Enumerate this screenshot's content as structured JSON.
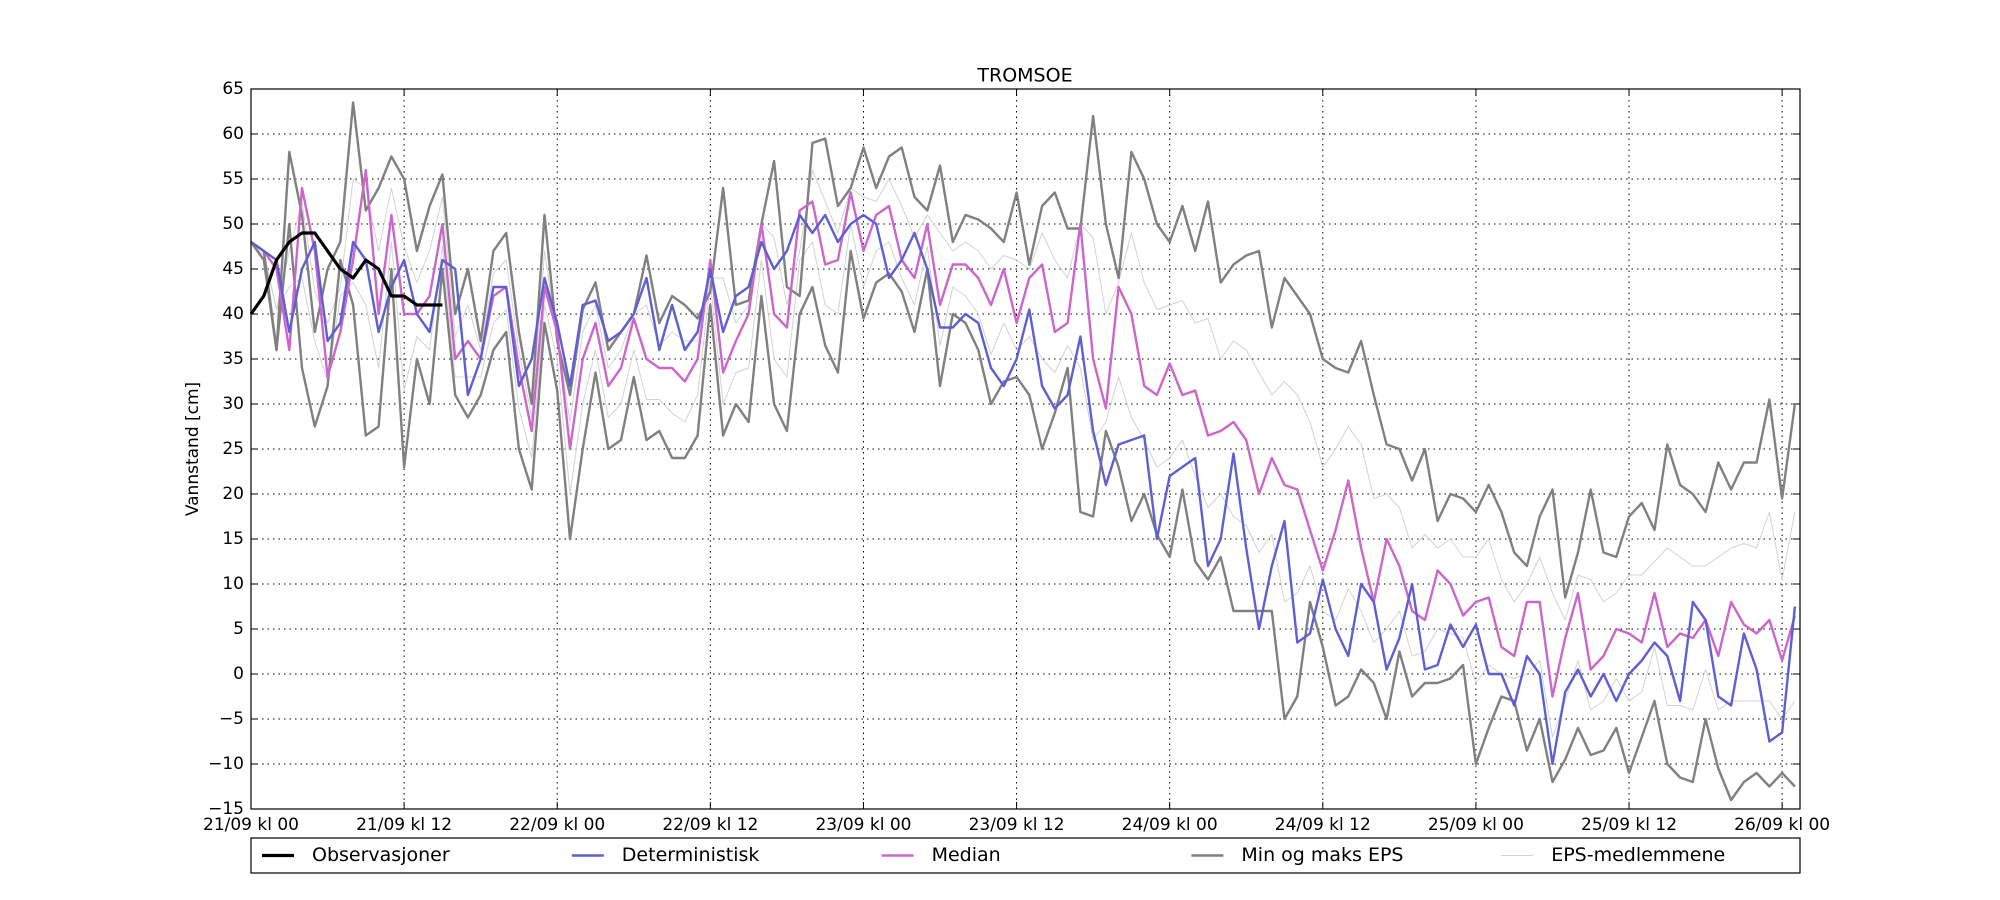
{
  "chart_data": {
    "type": "line",
    "title": "TROMSOE",
    "y_label": "Vannstand [cm]",
    "x": [
      0,
      1,
      2,
      3,
      4,
      5,
      6,
      7,
      8,
      9,
      10,
      11,
      12,
      13,
      14,
      15,
      16,
      17,
      18,
      19,
      20,
      21,
      22,
      23,
      24,
      25,
      26,
      27,
      28,
      29,
      30,
      31,
      32,
      33,
      34,
      35,
      36,
      37,
      38,
      39,
      40,
      41,
      42,
      43,
      44,
      45,
      46,
      47,
      48,
      49,
      50,
      51,
      52,
      53,
      54,
      55,
      56,
      57,
      58,
      59,
      60,
      61,
      62,
      63,
      64,
      65,
      66,
      67,
      68,
      69,
      70,
      71,
      72,
      73,
      74,
      75,
      76,
      77,
      78,
      79,
      80,
      81,
      82,
      83,
      84,
      85,
      86,
      87,
      88,
      89,
      90,
      91,
      92,
      93,
      94,
      95,
      96,
      97,
      98,
      99,
      100,
      101,
      102,
      103,
      104,
      105,
      106,
      107,
      108,
      109,
      110,
      111,
      112,
      113,
      114,
      115,
      116,
      117,
      118,
      119,
      120,
      121
    ],
    "xlim": [
      0,
      121.4
    ],
    "xticks": [
      {
        "value": 0,
        "label": "21/09 kl 00"
      },
      {
        "value": 12,
        "label": "21/09 kl 12"
      },
      {
        "value": 24,
        "label": "22/09 kl 00"
      },
      {
        "value": 36,
        "label": "22/09 kl 12"
      },
      {
        "value": 48,
        "label": "23/09 kl 00"
      },
      {
        "value": 60,
        "label": "23/09 kl 12"
      },
      {
        "value": 72,
        "label": "24/09 kl 00"
      },
      {
        "value": 84,
        "label": "24/09 kl 12"
      },
      {
        "value": 96,
        "label": "25/09 kl 00"
      },
      {
        "value": 108,
        "label": "25/09 kl 12"
      },
      {
        "value": 120,
        "label": "26/09 kl 00"
      }
    ],
    "ylim": [
      -15,
      65
    ],
    "yticks": [
      {
        "value": -15,
        "label": "−15"
      },
      {
        "value": -10,
        "label": "−10"
      },
      {
        "value": -5,
        "label": "−5"
      },
      0,
      5,
      10,
      15,
      20,
      25,
      30,
      35,
      40,
      45,
      50,
      55,
      60,
      65
    ],
    "grid": true,
    "legend": "bottom",
    "series": [
      {
        "name": "Observasjoner",
        "color": "#000000",
        "values": [
          40,
          42,
          46,
          48,
          49,
          49,
          47,
          45,
          44,
          46,
          45,
          42,
          42,
          41,
          41,
          41,
          null,
          null,
          null,
          null,
          null,
          null,
          null,
          null,
          null,
          null,
          null,
          null,
          null,
          null,
          null,
          null,
          null,
          null,
          null,
          null,
          null,
          null,
          null,
          null,
          null,
          null,
          null,
          null,
          null,
          null,
          null,
          null,
          null,
          null,
          null,
          null,
          null,
          null,
          null,
          null,
          null,
          null,
          null,
          null,
          null,
          null,
          null,
          null,
          null,
          null,
          null,
          null,
          null,
          null,
          null,
          null,
          null,
          null,
          null,
          null,
          null,
          null,
          null,
          null,
          null,
          null,
          null,
          null,
          null,
          null,
          null,
          null,
          null,
          null,
          null,
          null,
          null,
          null,
          null,
          null,
          null,
          null,
          null,
          null,
          null,
          null,
          null,
          null,
          null,
          null,
          null,
          null,
          null,
          null,
          null,
          null,
          null,
          null,
          null,
          null,
          null,
          null,
          null,
          null,
          null,
          null
        ]
      },
      {
        "name": "Deterministisk",
        "color": "#5f5fd2",
        "values": [
          48,
          47,
          46,
          38,
          45,
          48,
          37,
          39,
          48,
          46,
          38,
          43,
          46,
          40,
          38,
          46,
          45,
          31,
          35,
          43,
          43,
          32,
          35,
          44,
          39,
          32,
          41,
          41.5,
          37,
          38,
          40,
          44,
          36,
          41,
          36,
          38,
          45,
          38,
          42,
          43,
          48,
          45,
          47,
          51,
          49,
          51,
          48,
          50,
          51,
          50,
          44,
          46,
          49,
          45,
          38.5,
          38.5,
          40,
          39,
          34,
          32,
          35,
          40.5,
          32,
          29.5,
          31,
          37.5,
          27,
          21,
          25.5,
          26,
          26.5,
          15,
          22,
          23,
          24,
          12,
          15,
          24.5,
          14,
          5,
          12,
          17,
          3.5,
          4.5,
          10.5,
          5,
          2,
          10,
          8,
          0.5,
          4,
          10,
          0.5,
          1,
          5.5,
          3,
          5.5,
          0,
          0,
          -3.5,
          2,
          0,
          -10,
          -2,
          0.5,
          -2.5,
          0,
          -3,
          0,
          1.5,
          3.5,
          2,
          -3,
          8,
          6,
          -2.5,
          -3.5,
          4.5,
          0.5,
          -7.5,
          -6.5,
          7.5
        ]
      },
      {
        "name": "Median",
        "color": "#cc66cc",
        "values": [
          48,
          47,
          45,
          36,
          54,
          47,
          33,
          38,
          46,
          56,
          40,
          51,
          40,
          40,
          42,
          50,
          35,
          37,
          35,
          42,
          43,
          34,
          27,
          43,
          38,
          25,
          35,
          39,
          32,
          34,
          39.5,
          35,
          34,
          34,
          32.5,
          35,
          46,
          33.5,
          37,
          40,
          50,
          40,
          38.5,
          51.5,
          52.5,
          45.5,
          46,
          53.5,
          47,
          51,
          52,
          46,
          44,
          50,
          41,
          45.5,
          45.5,
          44,
          41,
          45,
          39,
          44,
          45.5,
          38,
          39,
          50,
          35,
          29.5,
          43,
          40,
          32,
          31,
          34.5,
          31,
          31.5,
          26.5,
          27,
          28,
          26,
          20,
          24,
          21,
          20.5,
          16,
          11.5,
          16,
          21.5,
          14,
          8,
          15,
          12,
          7,
          6,
          11.5,
          10,
          6.5,
          8,
          8.5,
          3,
          2,
          8,
          8,
          -2.5,
          4,
          9,
          0.5,
          2,
          5,
          4.5,
          3.5,
          9,
          3,
          4.5,
          4,
          6,
          2,
          8,
          5.5,
          4.5,
          6,
          1.5,
          6.5
        ]
      },
      {
        "name": "Min og maks EPS",
        "color": "#808080",
        "lines": [
          [
            48,
            47,
            36,
            58,
            51,
            38,
            45,
            48,
            63.5,
            51.5,
            54,
            57.5,
            55,
            47,
            52,
            55.5,
            40,
            45,
            37,
            47,
            49,
            38,
            30,
            51,
            37,
            31,
            40.5,
            43.5,
            36,
            38,
            40,
            46.5,
            39,
            42,
            41,
            39.5,
            42.5,
            54,
            41,
            41.5,
            50,
            57,
            43,
            42,
            59,
            59.5,
            52,
            54,
            58.5,
            54,
            57.5,
            58.5,
            53,
            51.5,
            56.5,
            48,
            51,
            50.5,
            49.5,
            48,
            53.5,
            45.5,
            52,
            53.5,
            49.5,
            49.5,
            62,
            50,
            44,
            58,
            55,
            50,
            48,
            52,
            47,
            52.5,
            43.5,
            45.5,
            46.5,
            47,
            38.5,
            44,
            42,
            40,
            35,
            34,
            33.5,
            37,
            31,
            25.5,
            25,
            21.5,
            25,
            17,
            20,
            19.5,
            18,
            21,
            18,
            13.5,
            12,
            17.5,
            20.5,
            8.5,
            13.5,
            20.5,
            13.5,
            13,
            17.5,
            19,
            16,
            25.5,
            21,
            20,
            18,
            23.5,
            20.5,
            23.5,
            23.5,
            30.5,
            19.5,
            30
          ],
          [
            48,
            46,
            36,
            50,
            34,
            27.5,
            32,
            46,
            41,
            26.5,
            27.5,
            45,
            23,
            35,
            30,
            45,
            31,
            28.5,
            31,
            36,
            38,
            25,
            20.5,
            39,
            31.5,
            15,
            25,
            33.5,
            25,
            26,
            33,
            26,
            27,
            24,
            24,
            26.5,
            41,
            26.5,
            30,
            28,
            42,
            30,
            27,
            40,
            43,
            36.5,
            33.5,
            47,
            39.5,
            43.5,
            44.5,
            42.5,
            38,
            45,
            32,
            40,
            39,
            36,
            30,
            32.5,
            33,
            31,
            25,
            29,
            34,
            18,
            17.5,
            27,
            23,
            17,
            20,
            15.5,
            13,
            20.5,
            12.5,
            10.5,
            13,
            7,
            7,
            7,
            7,
            -5,
            -2.5,
            8,
            3,
            -3.5,
            -2.5,
            0.5,
            -1,
            -5,
            2.5,
            -2.5,
            -1,
            -1,
            -0.5,
            1,
            -10,
            -6,
            -2.5,
            -3,
            -8.5,
            -5,
            -12,
            -9.5,
            -6,
            -9,
            -8.5,
            -6,
            -11,
            -7,
            -3,
            -10,
            -11.5,
            -12,
            -5,
            -10.5,
            -14,
            -12,
            -11,
            -12.5,
            -11,
            -12.5
          ]
        ]
      },
      {
        "name": "EPS-medlemmene",
        "color": "#d3d3d3",
        "lines": [
          [
            48,
            47,
            40.5,
            47,
            52.5,
            42.5,
            39,
            43,
            55,
            54,
            47,
            54,
            47.5,
            43.5,
            47,
            53,
            37.5,
            41,
            36,
            44.5,
            46,
            36,
            28.5,
            47,
            37.5,
            28,
            38,
            41,
            34,
            36,
            40,
            41,
            36.5,
            38,
            37,
            37,
            44,
            44,
            39,
            41,
            50,
            48.5,
            41,
            47,
            56,
            52.5,
            49,
            54,
            53,
            52.5,
            55,
            52,
            48.5,
            51,
            49,
            47,
            48,
            47,
            45,
            46.5,
            46,
            45,
            49,
            46,
            44,
            50,
            48.5,
            40,
            43.5,
            49,
            43.5,
            40.5,
            41,
            41.5,
            39,
            39.5,
            35,
            37,
            36,
            33.5,
            31,
            32.5,
            31,
            28,
            23,
            25,
            27.5,
            25.5,
            19.5,
            20,
            18.5,
            14,
            15.5,
            14,
            15,
            13,
            13,
            15,
            10.5,
            8,
            10,
            13,
            9,
            6,
            11,
            10.5,
            8,
            9,
            11,
            11,
            12.5,
            14,
            13,
            12,
            12,
            13,
            14,
            14.5,
            14,
            18,
            10.5,
            18
          ],
          [
            48,
            46.5,
            40.5,
            43,
            44,
            37,
            32.5,
            42,
            43.5,
            41,
            34,
            48,
            31.5,
            37.5,
            36,
            47.5,
            33,
            33,
            33,
            39,
            40.5,
            29.5,
            24,
            41,
            35,
            20,
            30,
            36,
            28.5,
            30,
            36,
            30.5,
            30.5,
            29,
            28,
            31,
            43.5,
            30,
            33.5,
            34,
            46,
            35,
            33,
            46,
            48,
            41,
            40,
            50,
            43,
            47,
            48,
            44,
            41,
            47.5,
            36.5,
            43,
            42,
            40,
            35.5,
            39,
            36,
            37.5,
            35,
            33.5,
            36.5,
            34,
            26,
            28,
            33,
            28.5,
            26,
            23,
            24,
            26,
            22,
            18.5,
            20,
            17.5,
            16.5,
            13.5,
            15.5,
            8,
            9,
            12,
            7,
            6,
            9.5,
            7,
            3.5,
            5,
            7,
            2,
            2.5,
            5,
            4.5,
            4,
            -1,
            1,
            0,
            -0.5,
            0,
            1.5,
            -7,
            -3,
            1.5,
            -4,
            -3,
            -0.5,
            -3,
            -2,
            3,
            -3.5,
            -3.5,
            -4,
            0.5,
            -4,
            -3,
            -3,
            -3,
            -3,
            -5,
            -3
          ]
        ]
      }
    ]
  }
}
